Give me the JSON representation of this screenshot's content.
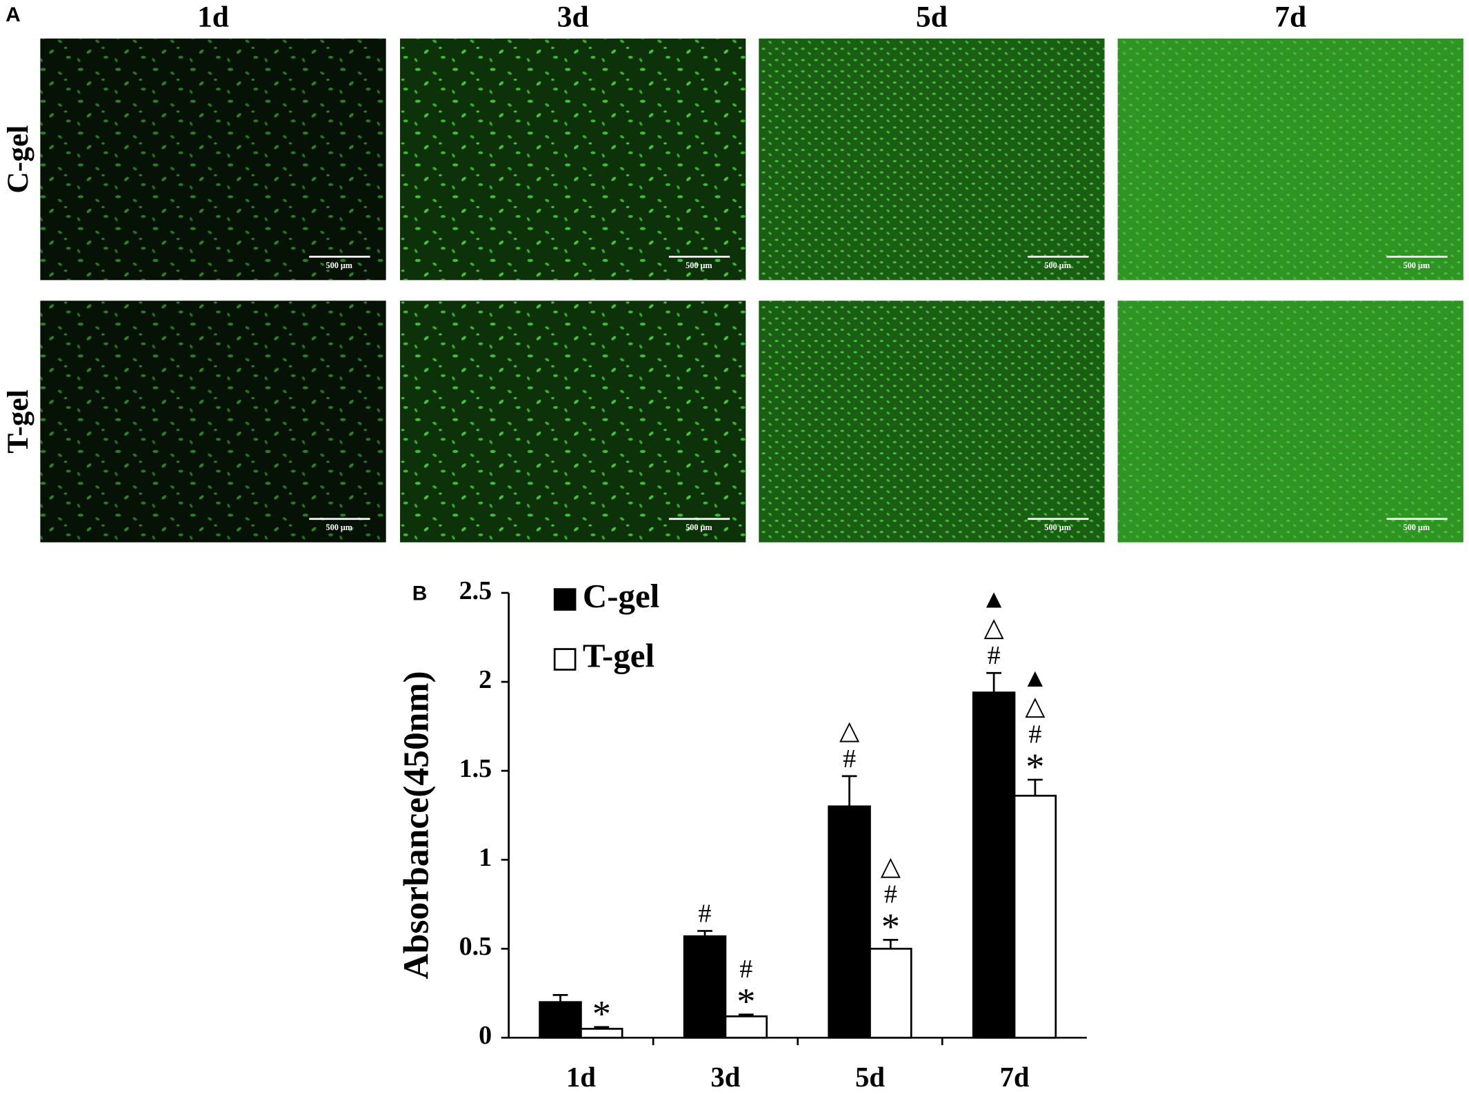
{
  "panel_a": {
    "label": "A",
    "columns": [
      "1d",
      "3d",
      "5d",
      "7d"
    ],
    "rows": [
      "C-gel",
      "T-gel"
    ],
    "scale_bar": "500 μm"
  },
  "chart_data": {
    "type": "bar",
    "label": "B",
    "y_label": "Absorbance(450nm)",
    "categories": [
      "1d",
      "3d",
      "5d",
      "7d"
    ],
    "series": [
      {
        "name": "C-gel",
        "color": "#000000",
        "values": [
          0.2,
          0.57,
          1.3,
          1.94
        ],
        "errors": [
          0.04,
          0.03,
          0.17,
          0.11
        ],
        "annotations": [
          [],
          [
            "#"
          ],
          [
            "△",
            "#"
          ],
          [
            "▲",
            "△",
            "#"
          ]
        ]
      },
      {
        "name": "T-gel",
        "color": "#ffffff",
        "values": [
          0.05,
          0.12,
          0.5,
          1.36
        ],
        "errors": [
          0.01,
          0.01,
          0.05,
          0.09
        ],
        "annotations": [
          [
            "*"
          ],
          [
            "#",
            "*"
          ],
          [
            "△",
            "#",
            "*"
          ],
          [
            "▲",
            "△",
            "#",
            "*"
          ]
        ]
      }
    ],
    "ylim": [
      0,
      2.5
    ],
    "yticks": [
      0,
      0.5,
      1,
      1.5,
      2,
      2.5
    ],
    "grid": false,
    "legend": "top-left"
  }
}
